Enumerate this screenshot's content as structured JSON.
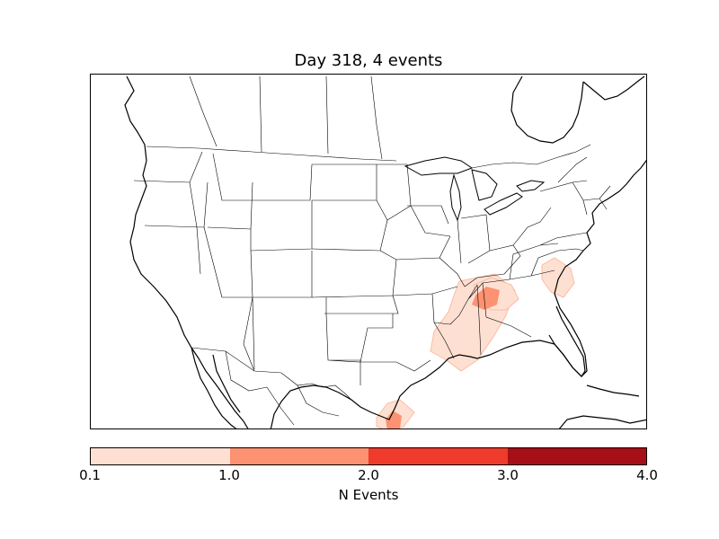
{
  "title": "Day 318, 4 events",
  "colorbar": {
    "label": "N Events",
    "ticks": [
      "0.1",
      "1.0",
      "2.0",
      "3.0",
      "4.0"
    ],
    "colors": [
      "#fee0d2",
      "#fc9272",
      "#ef3b2c",
      "#a50f15"
    ]
  },
  "map": {
    "region": "North America",
    "projection": "lambert-conformal",
    "event_colors": {
      "low": "#fee0d2",
      "low_edge": "#fcbba1",
      "mid": "#fc9272"
    },
    "event_areas": [
      "Gulf Coast (Mississippi / Louisiana)",
      "Alabama",
      "South Carolina",
      "South Texas coast"
    ]
  }
}
